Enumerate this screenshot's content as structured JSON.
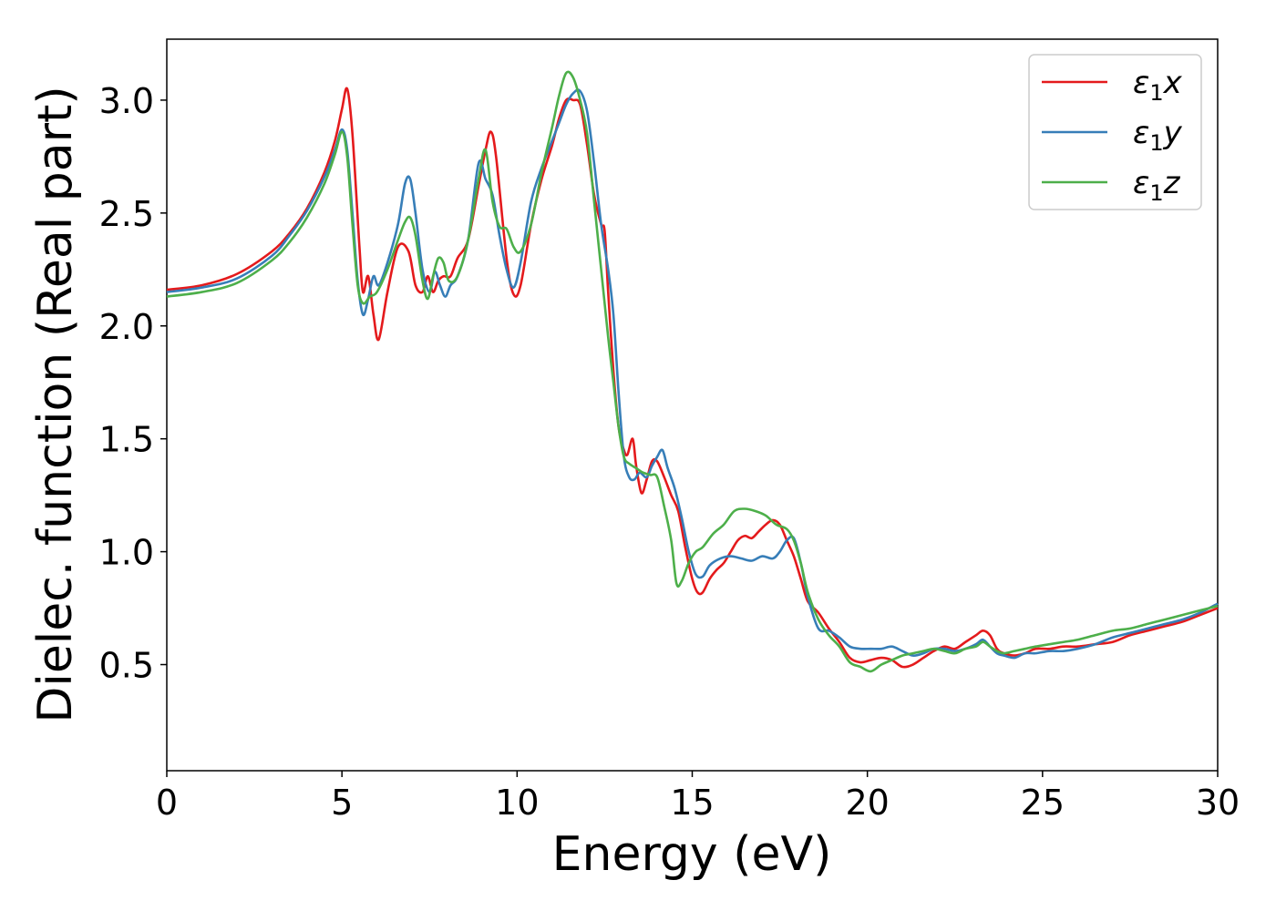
{
  "chart_data": {
    "type": "line",
    "title": "",
    "xlabel": "Energy (eV)",
    "ylabel": "Dielec. function (Real part)",
    "xlim": [
      0,
      30
    ],
    "ylim": [
      0.03,
      3.27
    ],
    "xticks": [
      0,
      5,
      10,
      15,
      20,
      25,
      30
    ],
    "xtick_labels": [
      "0",
      "5",
      "10",
      "15",
      "20",
      "25",
      "30"
    ],
    "yticks": [
      0.5,
      1.0,
      1.5,
      2.0,
      2.5,
      3.0
    ],
    "ytick_labels": [
      "0.5",
      "1.0",
      "1.5",
      "2.0",
      "2.5",
      "3.0"
    ],
    "grid": false,
    "legend_position": "top-right",
    "series": [
      {
        "name": "ε₁x",
        "legend_main": "ε",
        "legend_sub": "1",
        "legend_tail": "x",
        "color": "#e41a1c",
        "x": [
          0,
          1,
          2,
          3,
          3.5,
          4,
          4.5,
          4.8,
          5.0,
          5.15,
          5.3,
          5.5,
          5.6,
          5.75,
          5.9,
          6.05,
          6.3,
          6.6,
          6.9,
          7.1,
          7.3,
          7.45,
          7.6,
          7.75,
          7.9,
          8.1,
          8.3,
          8.6,
          8.9,
          9.1,
          9.25,
          9.4,
          9.7,
          9.9,
          10.1,
          10.4,
          10.7,
          11.0,
          11.2,
          11.4,
          11.6,
          11.8,
          12.0,
          12.2,
          12.4,
          12.5,
          12.6,
          12.75,
          12.9,
          13.05,
          13.15,
          13.3,
          13.4,
          13.55,
          13.7,
          13.85,
          14.0,
          14.2,
          14.4,
          14.6,
          14.8,
          15.0,
          15.15,
          15.3,
          15.5,
          15.7,
          15.9,
          16.1,
          16.3,
          16.5,
          16.7,
          16.9,
          17.1,
          17.3,
          17.5,
          17.7,
          17.9,
          18.1,
          18.3,
          18.6,
          18.9,
          19.2,
          19.5,
          19.8,
          20.1,
          20.4,
          20.7,
          21.0,
          21.3,
          21.6,
          21.9,
          22.2,
          22.5,
          22.8,
          23.1,
          23.3,
          23.5,
          23.7,
          23.9,
          24.2,
          24.5,
          24.8,
          25.2,
          25.6,
          26.0,
          26.5,
          27.0,
          27.5,
          28.0,
          28.5,
          29.0,
          29.5,
          30.0
        ],
        "y": [
          2.16,
          2.18,
          2.23,
          2.33,
          2.41,
          2.52,
          2.68,
          2.82,
          2.96,
          3.05,
          2.85,
          2.35,
          2.15,
          2.22,
          2.05,
          1.94,
          2.15,
          2.35,
          2.33,
          2.18,
          2.15,
          2.22,
          2.15,
          2.2,
          2.22,
          2.22,
          2.3,
          2.38,
          2.62,
          2.78,
          2.86,
          2.75,
          2.3,
          2.14,
          2.18,
          2.45,
          2.65,
          2.8,
          2.92,
          3.0,
          3.0,
          2.98,
          2.8,
          2.58,
          2.45,
          2.42,
          2.15,
          1.8,
          1.55,
          1.45,
          1.43,
          1.5,
          1.38,
          1.26,
          1.32,
          1.4,
          1.4,
          1.33,
          1.25,
          1.18,
          1.02,
          0.88,
          0.82,
          0.82,
          0.88,
          0.92,
          0.95,
          1.0,
          1.05,
          1.07,
          1.06,
          1.09,
          1.12,
          1.14,
          1.12,
          1.05,
          0.98,
          0.88,
          0.78,
          0.73,
          0.66,
          0.6,
          0.53,
          0.51,
          0.52,
          0.53,
          0.52,
          0.49,
          0.5,
          0.53,
          0.56,
          0.58,
          0.57,
          0.6,
          0.63,
          0.65,
          0.63,
          0.57,
          0.55,
          0.54,
          0.55,
          0.57,
          0.57,
          0.58,
          0.58,
          0.59,
          0.6,
          0.63,
          0.65,
          0.67,
          0.69,
          0.72,
          0.75
        ]
      },
      {
        "name": "ε₁y",
        "legend_main": "ε",
        "legend_sub": "1",
        "legend_tail": "y",
        "color": "#377eb8",
        "x": [
          0,
          1,
          2,
          3,
          3.5,
          4,
          4.5,
          4.8,
          5.0,
          5.15,
          5.3,
          5.45,
          5.6,
          5.75,
          5.9,
          6.05,
          6.3,
          6.6,
          6.8,
          6.95,
          7.1,
          7.3,
          7.5,
          7.65,
          7.8,
          7.95,
          8.1,
          8.3,
          8.6,
          8.9,
          9.1,
          9.3,
          9.5,
          9.7,
          9.9,
          10.1,
          10.4,
          10.7,
          11.0,
          11.2,
          11.4,
          11.6,
          11.8,
          12.0,
          12.2,
          12.4,
          12.6,
          12.75,
          12.9,
          13.05,
          13.2,
          13.35,
          13.5,
          13.7,
          13.85,
          14.0,
          14.15,
          14.3,
          14.5,
          14.7,
          14.9,
          15.1,
          15.3,
          15.5,
          15.8,
          16.1,
          16.4,
          16.7,
          17.0,
          17.3,
          17.5,
          17.7,
          17.9,
          18.1,
          18.3,
          18.6,
          18.9,
          19.2,
          19.5,
          19.8,
          20.1,
          20.4,
          20.7,
          21.0,
          21.3,
          21.6,
          21.9,
          22.2,
          22.5,
          22.8,
          23.1,
          23.3,
          23.5,
          23.7,
          23.9,
          24.2,
          24.5,
          24.8,
          25.2,
          25.6,
          26.0,
          26.5,
          27.0,
          27.5,
          28.0,
          28.5,
          29.0,
          29.5,
          30.0
        ],
        "y": [
          2.15,
          2.17,
          2.21,
          2.31,
          2.4,
          2.51,
          2.66,
          2.78,
          2.87,
          2.78,
          2.5,
          2.2,
          2.05,
          2.12,
          2.22,
          2.18,
          2.28,
          2.45,
          2.63,
          2.65,
          2.5,
          2.25,
          2.15,
          2.24,
          2.18,
          2.13,
          2.18,
          2.22,
          2.38,
          2.72,
          2.65,
          2.58,
          2.4,
          2.25,
          2.17,
          2.28,
          2.55,
          2.7,
          2.82,
          2.9,
          2.98,
          3.03,
          3.04,
          2.95,
          2.72,
          2.45,
          2.25,
          2.05,
          1.7,
          1.42,
          1.33,
          1.32,
          1.35,
          1.33,
          1.38,
          1.42,
          1.45,
          1.37,
          1.28,
          1.15,
          1.0,
          0.9,
          0.89,
          0.94,
          0.97,
          0.98,
          0.97,
          0.96,
          0.98,
          0.97,
          1.0,
          1.05,
          1.06,
          0.95,
          0.8,
          0.66,
          0.65,
          0.62,
          0.58,
          0.57,
          0.57,
          0.57,
          0.58,
          0.56,
          0.54,
          0.55,
          0.57,
          0.57,
          0.56,
          0.57,
          0.59,
          0.61,
          0.58,
          0.55,
          0.54,
          0.53,
          0.55,
          0.55,
          0.56,
          0.56,
          0.57,
          0.59,
          0.62,
          0.64,
          0.66,
          0.68,
          0.7,
          0.73,
          0.77
        ]
      },
      {
        "name": "ε₁z",
        "legend_main": "ε",
        "legend_sub": "1",
        "legend_tail": "z",
        "color": "#4daf4a",
        "x": [
          0,
          1,
          2,
          3,
          3.5,
          4,
          4.5,
          4.8,
          5.0,
          5.15,
          5.3,
          5.45,
          5.6,
          5.8,
          6.0,
          6.3,
          6.6,
          6.8,
          6.95,
          7.1,
          7.3,
          7.45,
          7.6,
          7.75,
          7.9,
          8.05,
          8.3,
          8.6,
          8.9,
          9.1,
          9.3,
          9.5,
          9.7,
          9.9,
          10.1,
          10.4,
          10.7,
          11.0,
          11.2,
          11.4,
          11.6,
          11.8,
          12.0,
          12.2,
          12.4,
          12.6,
          12.75,
          12.9,
          13.05,
          13.2,
          13.4,
          13.6,
          13.8,
          14.0,
          14.2,
          14.4,
          14.55,
          14.7,
          14.9,
          15.1,
          15.3,
          15.6,
          15.9,
          16.2,
          16.5,
          16.8,
          17.1,
          17.4,
          17.7,
          17.9,
          18.1,
          18.3,
          18.6,
          18.9,
          19.2,
          19.5,
          19.8,
          20.1,
          20.4,
          20.7,
          21.0,
          21.3,
          21.6,
          21.9,
          22.2,
          22.5,
          22.8,
          23.1,
          23.3,
          23.5,
          23.7,
          23.9,
          24.2,
          24.5,
          24.8,
          25.2,
          25.6,
          26.0,
          26.5,
          27.0,
          27.5,
          28.0,
          28.5,
          29.0,
          29.5,
          30.0
        ],
        "y": [
          2.13,
          2.15,
          2.19,
          2.29,
          2.37,
          2.48,
          2.63,
          2.76,
          2.86,
          2.75,
          2.45,
          2.18,
          2.1,
          2.13,
          2.15,
          2.25,
          2.38,
          2.46,
          2.48,
          2.4,
          2.2,
          2.12,
          2.22,
          2.3,
          2.28,
          2.2,
          2.22,
          2.38,
          2.65,
          2.78,
          2.55,
          2.44,
          2.43,
          2.35,
          2.33,
          2.45,
          2.68,
          2.88,
          3.02,
          3.12,
          3.1,
          3.0,
          2.85,
          2.55,
          2.25,
          1.95,
          1.75,
          1.55,
          1.42,
          1.39,
          1.37,
          1.35,
          1.34,
          1.33,
          1.2,
          1.05,
          0.86,
          0.87,
          0.95,
          1.0,
          1.02,
          1.08,
          1.12,
          1.18,
          1.19,
          1.18,
          1.16,
          1.12,
          1.1,
          1.05,
          0.95,
          0.82,
          0.7,
          0.63,
          0.58,
          0.51,
          0.49,
          0.47,
          0.5,
          0.52,
          0.54,
          0.55,
          0.56,
          0.57,
          0.56,
          0.55,
          0.57,
          0.58,
          0.6,
          0.58,
          0.56,
          0.55,
          0.56,
          0.57,
          0.58,
          0.59,
          0.6,
          0.61,
          0.63,
          0.65,
          0.66,
          0.68,
          0.7,
          0.72,
          0.74,
          0.76
        ]
      }
    ]
  }
}
